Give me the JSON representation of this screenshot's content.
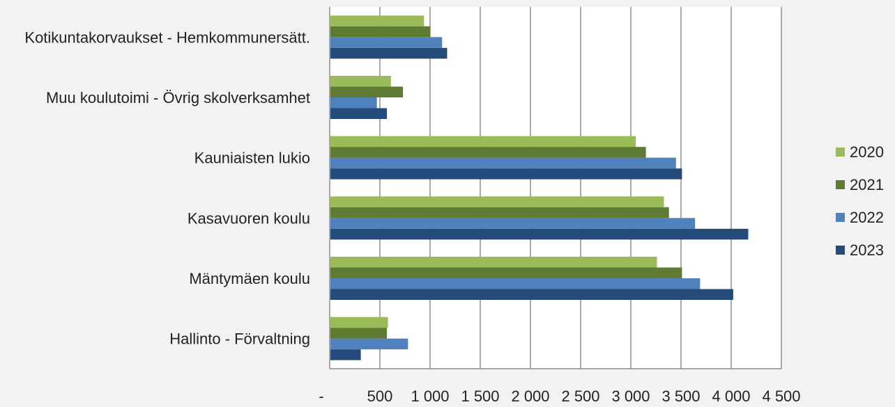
{
  "chart_data": {
    "type": "bar",
    "orientation": "horizontal",
    "title": "",
    "xlabel": "",
    "ylabel": "",
    "categories": [
      "Kotikuntakorvaukset - Hemkommunersätt.",
      "Muu koulutoimi - Övrig skolverksamhet",
      "Kauniaisten lukio",
      "Kasavuoren koulu",
      "Mäntymäen koulu",
      "Hallinto - Förvaltning"
    ],
    "series": [
      {
        "name": "2020",
        "color": "#9bbb59",
        "values": [
          940,
          610,
          3050,
          3330,
          3260,
          580
        ]
      },
      {
        "name": "2021",
        "color": "#5f7a33",
        "values": [
          1000,
          730,
          3150,
          3380,
          3510,
          570
        ]
      },
      {
        "name": "2022",
        "color": "#4f81bd",
        "values": [
          1120,
          470,
          3450,
          3640,
          3690,
          780
        ]
      },
      {
        "name": "2023",
        "color": "#254b7a",
        "values": [
          1170,
          570,
          3510,
          4170,
          4020,
          310
        ]
      }
    ],
    "xlim": [
      0,
      4500
    ],
    "xticks": [
      0,
      500,
      1000,
      1500,
      2000,
      2500,
      3000,
      3500,
      4000,
      4500
    ],
    "xtick_labels": [
      "-",
      "500",
      "1 000",
      "1 500",
      "2 000",
      "2 500",
      "3 000",
      "3 500",
      "4 000",
      "4 500"
    ],
    "grid": "vertical",
    "legend_position": "right"
  }
}
